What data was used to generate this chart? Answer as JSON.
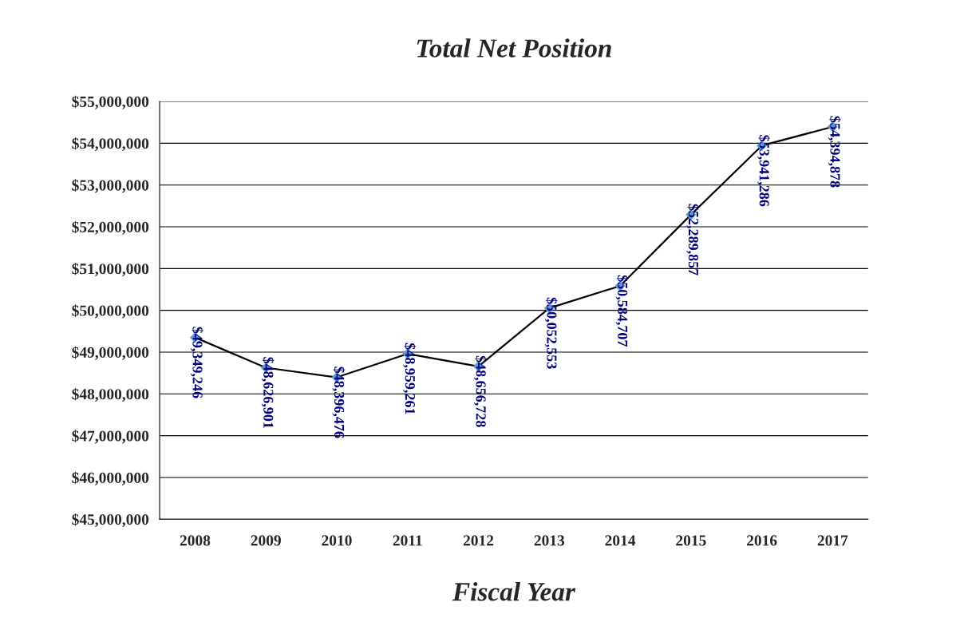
{
  "chart_data": {
    "type": "line",
    "title": "Total Net Position",
    "xlabel": "Fiscal Year",
    "categories": [
      "2008",
      "2009",
      "2010",
      "2011",
      "2012",
      "2013",
      "2014",
      "2015",
      "2016",
      "2017"
    ],
    "series": [
      {
        "color": "#000000",
        "colors": [
          "#5b9bd5",
          "#5b9bd5",
          "#5b9bd5",
          "#5b9bd5",
          "#5b9bd5",
          "#5b9bd5",
          "#5b9bd5",
          "#5b9bd5",
          "#5b9bd5",
          "#5b9bd5"
        ],
        "values": [
          49349246,
          48626901,
          48396476,
          48959261,
          48656728,
          50052553,
          50584707,
          52289857,
          53941286,
          54394878
        ],
        "value_labels": [
          "$49,349,246",
          "$48,626,901",
          "$48,396,476",
          "$48,959,261",
          "$48,656,728",
          "$50,052,553",
          "$50,584,707",
          "$52,289,857",
          "$53,941,286",
          "$54,394,878"
        ]
      }
    ],
    "ylim": [
      45000000,
      55000000
    ],
    "yticks": [
      {
        "value": 45000000,
        "label": "$45,000,000"
      },
      {
        "value": 46000000,
        "label": "$46,000,000"
      },
      {
        "value": 47000000,
        "label": "$47,000,000"
      },
      {
        "value": 48000000,
        "label": "$48,000,000"
      },
      {
        "value": 49000000,
        "label": "$49,000,000"
      },
      {
        "value": 50000000,
        "label": "$50,000,000"
      },
      {
        "value": 51000000,
        "label": "$51,000,000"
      },
      {
        "value": 52000000,
        "label": "$52,000,000"
      },
      {
        "value": 53000000,
        "label": "$53,000,000"
      },
      {
        "value": 54000000,
        "label": "$54,000,000"
      },
      {
        "value": 55000000,
        "label": "$55,000,000"
      }
    ],
    "grid": "y",
    "marker": "diamond",
    "line_style": "solid"
  }
}
